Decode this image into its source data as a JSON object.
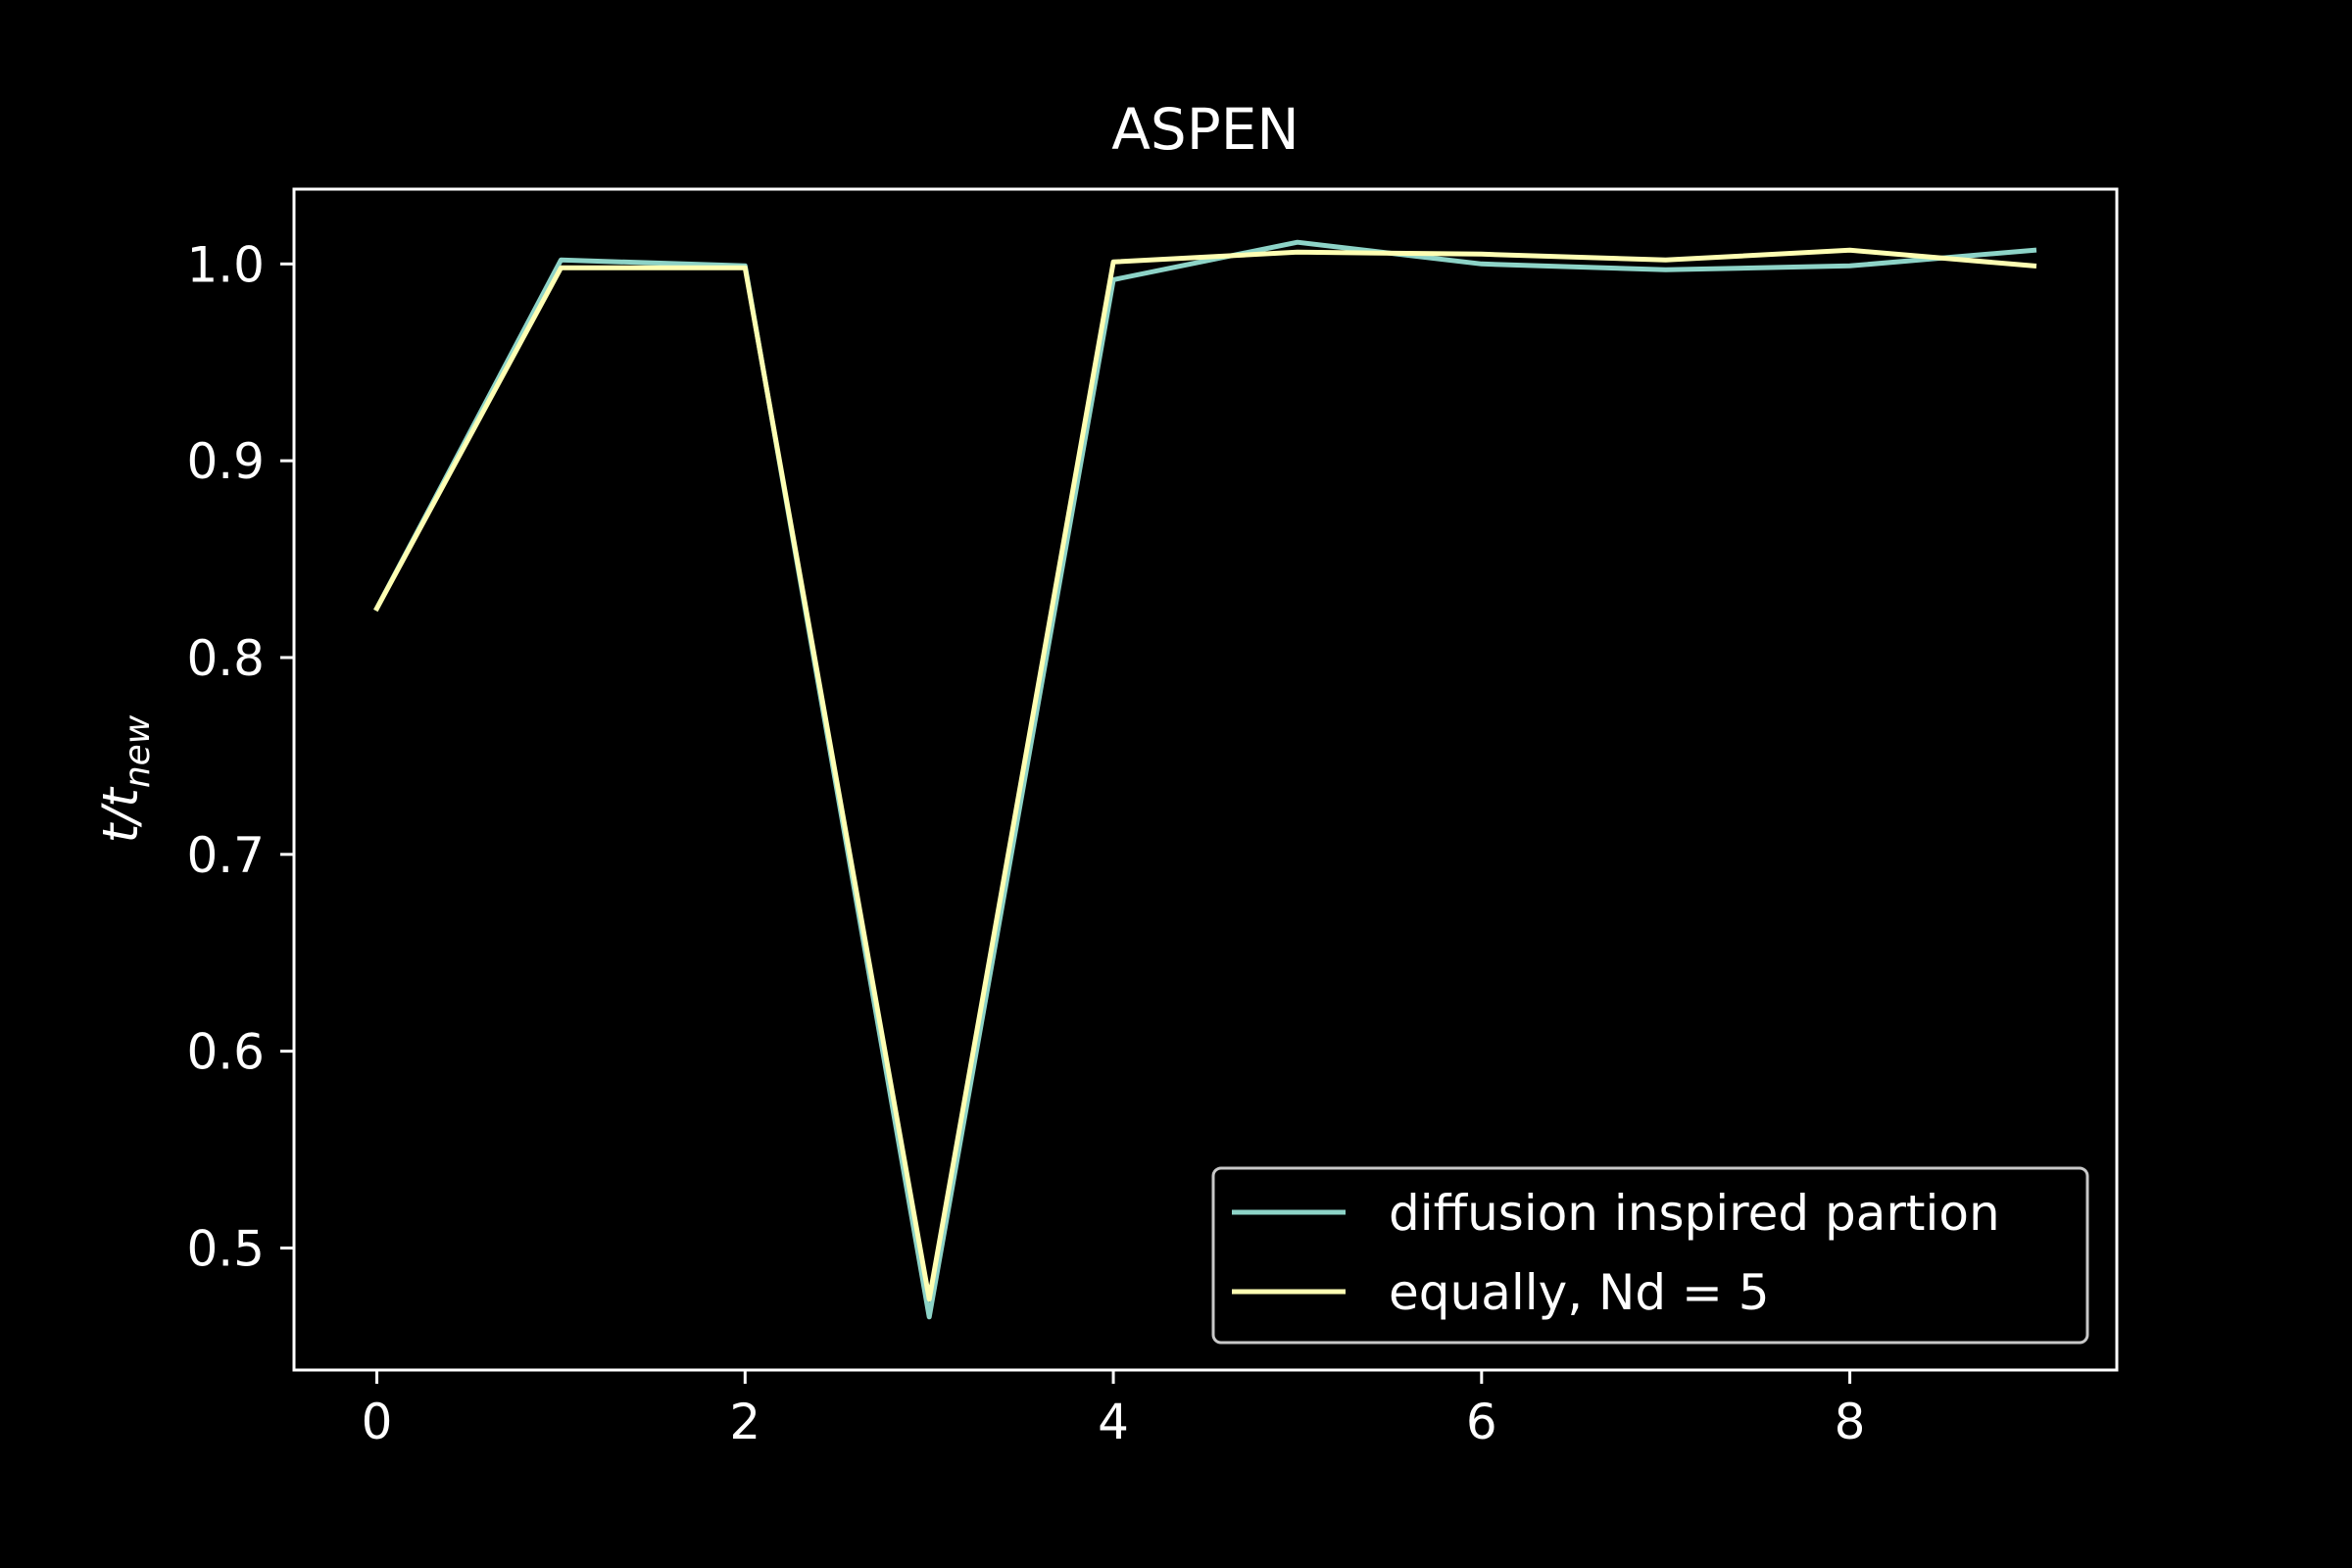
{
  "chart_data": {
    "type": "line",
    "title": "ASPEN",
    "ylabel_base": "t/t",
    "ylabel_sub": "new",
    "xlabel": "",
    "xlim": [
      -0.45,
      9.45
    ],
    "ylim": [
      0.438,
      1.038
    ],
    "x_ticks": [
      0,
      2,
      4,
      6,
      8
    ],
    "y_ticks": [
      0.5,
      0.6,
      0.7,
      0.8,
      0.9,
      1.0
    ],
    "x_tick_labels": [
      "0",
      "2",
      "4",
      "6",
      "8"
    ],
    "y_tick_labels": [
      "0.5",
      "0.6",
      "0.7",
      "0.8",
      "0.9",
      "1.0"
    ],
    "grid": false,
    "legend_position": "lower-right",
    "x": [
      0,
      1,
      2,
      3,
      4,
      5,
      6,
      7,
      8,
      9
    ],
    "series": [
      {
        "name": "diffusion inspired partion",
        "color": "#8dd3c7",
        "values": [
          0.825,
          1.002,
          0.999,
          0.465,
          0.992,
          1.011,
          1.0,
          0.997,
          0.999,
          1.007
        ]
      },
      {
        "name": "equally, Nd = 5",
        "color": "#ffffb3",
        "values": [
          0.825,
          0.998,
          0.998,
          0.474,
          1.001,
          1.006,
          1.005,
          1.002,
          1.007,
          0.999
        ]
      }
    ]
  }
}
